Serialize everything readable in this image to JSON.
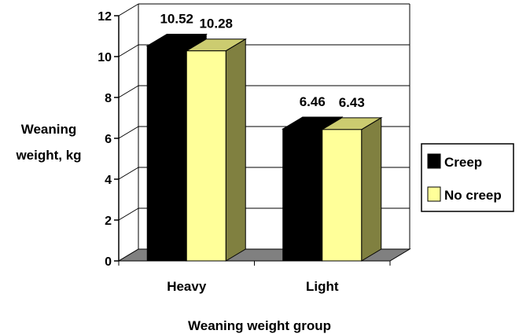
{
  "chart_data": {
    "type": "bar",
    "categories": [
      "Heavy",
      "Light"
    ],
    "series": [
      {
        "name": "Creep",
        "values": [
          10.52,
          6.46
        ],
        "value_labels": [
          "10.52",
          "6.46"
        ]
      },
      {
        "name": "No creep",
        "values": [
          10.28,
          6.43
        ],
        "value_labels": [
          "10.28",
          "6.43"
        ]
      }
    ],
    "title": "",
    "xlabel": "Weaning weight group",
    "ylabel_lines": [
      "Weaning",
      "weight, kg"
    ],
    "ylim": [
      0,
      12
    ],
    "yticks": [
      "0",
      "2",
      "4",
      "6",
      "8",
      "10",
      "12"
    ],
    "grid": true,
    "legend": "right",
    "colors": {
      "Creep": "#000000",
      "No creep": "#ffff99",
      "No creep_side": "#808040",
      "floor": "#808080"
    }
  }
}
